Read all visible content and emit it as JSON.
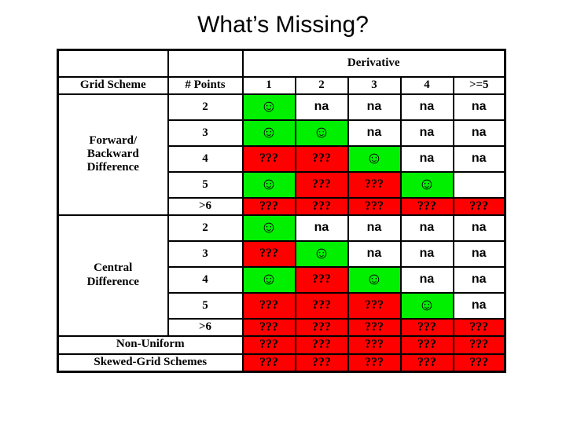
{
  "title": "What’s Missing?",
  "table": {
    "derivative_header": "Derivative",
    "col_headers": [
      "Grid Scheme",
      "# Points",
      "1",
      "2",
      "3",
      "4",
      ">=5"
    ],
    "legend": {
      "good_symbol": "☺",
      "na_text": "na",
      "unknown_text": "???"
    },
    "colors": {
      "good_bg": "#00f000",
      "missing_bg": "#ff0000",
      "unknown_text": "#420000",
      "border": "#000000"
    },
    "sections": [
      {
        "label_lines": [
          "Forward/",
          "Backward",
          "Difference"
        ],
        "rows": [
          {
            "points": "2",
            "cells": [
              "smiley",
              "na",
              "na",
              "na",
              "na"
            ]
          },
          {
            "points": "3",
            "cells": [
              "smiley",
              "smiley",
              "na",
              "na",
              "na"
            ]
          },
          {
            "points": "4",
            "cells": [
              "unknown",
              "unknown",
              "smiley",
              "na",
              "na"
            ]
          },
          {
            "points": "5",
            "cells": [
              "smiley",
              "unknown",
              "unknown",
              "smiley",
              "blank"
            ]
          },
          {
            "points": ">6",
            "cells": [
              "unknown",
              "unknown",
              "unknown",
              "unknown",
              "unknown"
            ]
          }
        ]
      },
      {
        "label_lines": [
          "Central",
          "Difference"
        ],
        "rows": [
          {
            "points": "2",
            "cells": [
              "smiley",
              "na",
              "na",
              "na",
              "na"
            ]
          },
          {
            "points": "3",
            "cells": [
              "unknown",
              "smiley",
              "na",
              "na",
              "na"
            ]
          },
          {
            "points": "4",
            "cells": [
              "smiley",
              "unknown",
              "smiley",
              "na",
              "na"
            ]
          },
          {
            "points": "5",
            "cells": [
              "unknown",
              "unknown",
              "unknown",
              "smiley",
              "na"
            ]
          },
          {
            "points": ">6",
            "cells": [
              "unknown",
              "unknown",
              "unknown",
              "unknown",
              "unknown"
            ]
          }
        ]
      }
    ],
    "footer_rows": [
      {
        "label": "Non-Uniform",
        "cells": [
          "unknown",
          "unknown",
          "unknown",
          "unknown",
          "unknown"
        ]
      },
      {
        "label": "Skewed-Grid Schemes",
        "cells": [
          "unknown",
          "unknown",
          "unknown",
          "unknown",
          "unknown"
        ]
      }
    ]
  }
}
